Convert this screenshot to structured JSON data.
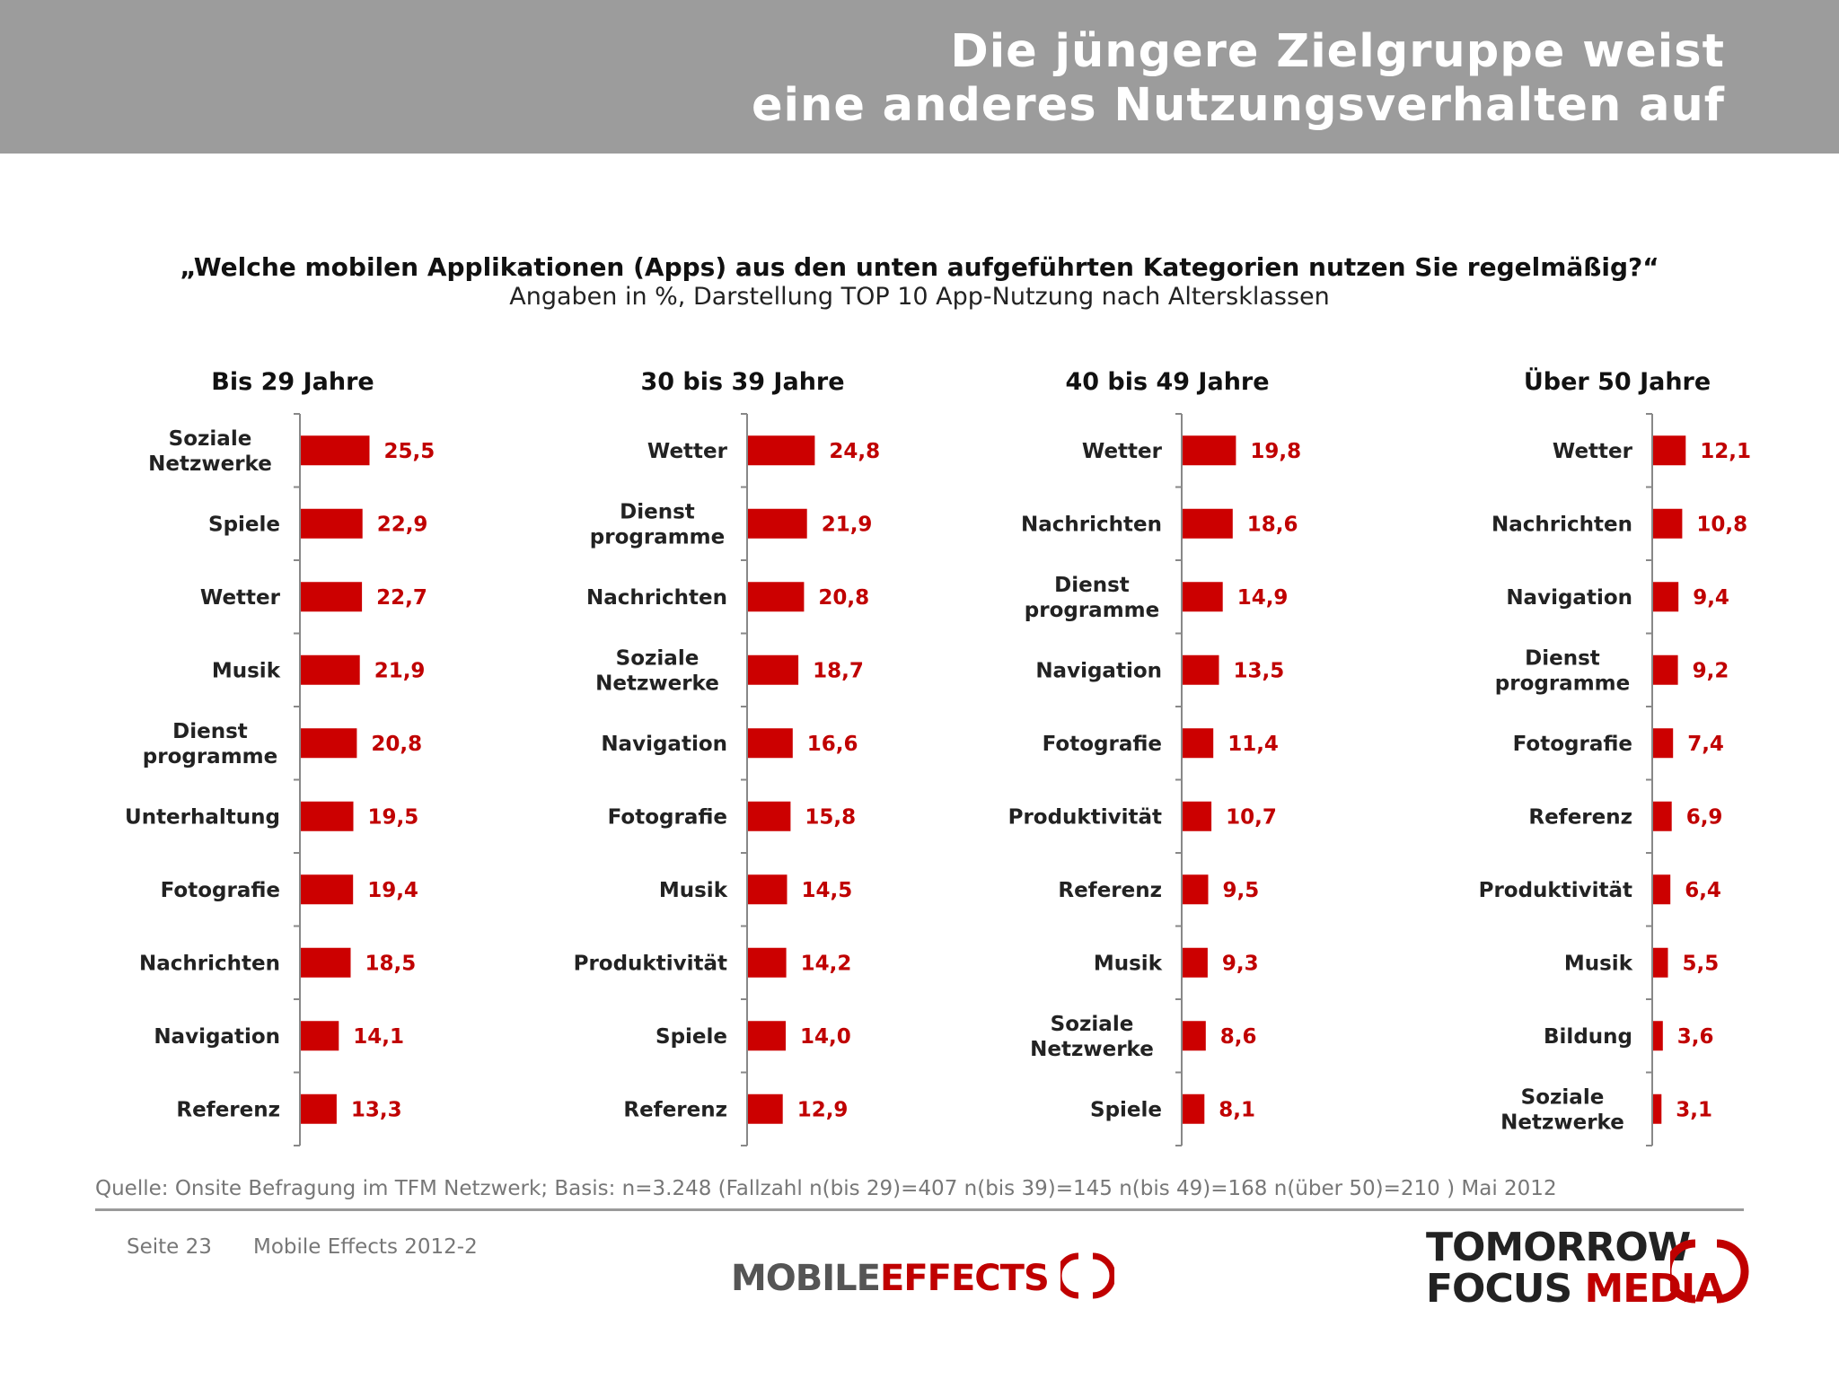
{
  "header": {
    "title_line1": "Die jüngere Zielgruppe weist",
    "title_line2": "eine anderes Nutzungsverhalten auf"
  },
  "question": "„Welche mobilen Applikationen (Apps) aus den unten aufgeführten Kategorien nutzen Sie regelmäßig?“",
  "subtitle": "Angaben in %, Darstellung TOP 10 App-Nutzung nach Altersklassen",
  "colors": {
    "bar": "#cc0000",
    "value_text": "#c00000",
    "header_bg": "#9c9c9c"
  },
  "chart_data": [
    {
      "type": "bar",
      "orientation": "horizontal",
      "title": "Bis 29 Jahre",
      "categories": [
        "Soziale\nNetzwerke",
        "Spiele",
        "Wetter",
        "Musik",
        "Dienst\nprogramme",
        "Unterhaltung",
        "Fotografie",
        "Nachrichten",
        "Navigation",
        "Referenz"
      ],
      "values": [
        25.5,
        22.9,
        22.7,
        21.9,
        20.8,
        19.5,
        19.4,
        18.5,
        14.1,
        13.3
      ],
      "value_labels": [
        "25,5",
        "22,9",
        "22,7",
        "21,9",
        "20,8",
        "19,5",
        "19,4",
        "18,5",
        "14,1",
        "13,3"
      ]
    },
    {
      "type": "bar",
      "orientation": "horizontal",
      "title": "30 bis 39 Jahre",
      "categories": [
        "Wetter",
        "Dienst\nprogramme",
        "Nachrichten",
        "Soziale\nNetzwerke",
        "Navigation",
        "Fotografie",
        "Musik",
        "Produktivität",
        "Spiele",
        "Referenz"
      ],
      "values": [
        24.8,
        21.9,
        20.8,
        18.7,
        16.6,
        15.8,
        14.5,
        14.2,
        14.0,
        12.9
      ],
      "value_labels": [
        "24,8",
        "21,9",
        "20,8",
        "18,7",
        "16,6",
        "15,8",
        "14,5",
        "14,2",
        "14,0",
        "12,9"
      ]
    },
    {
      "type": "bar",
      "orientation": "horizontal",
      "title": "40 bis 49 Jahre",
      "categories": [
        "Wetter",
        "Nachrichten",
        "Dienst\nprogramme",
        "Navigation",
        "Fotografie",
        "Produktivität",
        "Referenz",
        "Musik",
        "Soziale\nNetzwerke",
        "Spiele"
      ],
      "values": [
        19.8,
        18.6,
        14.9,
        13.5,
        11.4,
        10.7,
        9.5,
        9.3,
        8.6,
        8.1
      ],
      "value_labels": [
        "19,8",
        "18,6",
        "14,9",
        "13,5",
        "11,4",
        "10,7",
        "9,5",
        "9,3",
        "8,6",
        "8,1"
      ]
    },
    {
      "type": "bar",
      "orientation": "horizontal",
      "title": "Über 50 Jahre",
      "categories": [
        "Wetter",
        "Nachrichten",
        "Navigation",
        "Dienst\nprogramme",
        "Fotografie",
        "Referenz",
        "Produktivität",
        "Musik",
        "Bildung",
        "Soziale\nNetzwerke"
      ],
      "values": [
        12.1,
        10.8,
        9.4,
        9.2,
        7.4,
        6.9,
        6.4,
        5.5,
        3.6,
        3.1
      ],
      "value_labels": [
        "12,1",
        "10,8",
        "9,4",
        "9,2",
        "7,4",
        "6,9",
        "6,4",
        "5,5",
        "3,6",
        "3,1"
      ]
    }
  ],
  "source": "Quelle: Onsite Befragung im TFM Netzwerk; Basis: n=3.248 (Fallzahl n(bis 29)=407 n(bis 39)=145 n(bis 49)=168 n(über 50)=210 ) Mai 2012",
  "footer": {
    "page": "Seite 23",
    "publication": "Mobile Effects 2012-2",
    "logo_left_part1": "MOBILE",
    "logo_left_part2": "EFFECTS",
    "logo_right_line1": "TOMORROW",
    "logo_right_line2a": "FOCUS",
    "logo_right_line2b": "MEDIA"
  }
}
